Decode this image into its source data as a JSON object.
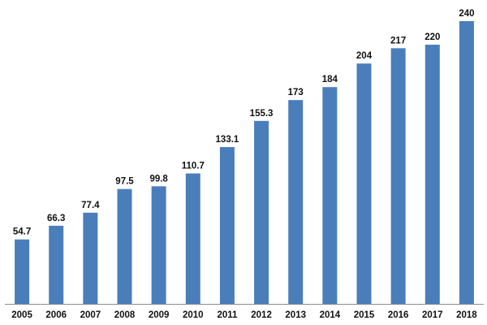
{
  "chart_data": {
    "type": "bar",
    "title": "",
    "xlabel": "",
    "ylabel": "",
    "categories": [
      "2005",
      "2006",
      "2007",
      "2008",
      "2009",
      "2010",
      "2011",
      "2012",
      "2013",
      "2014",
      "2015",
      "2016",
      "2017",
      "2018"
    ],
    "values": [
      54.7,
      66.3,
      77.4,
      97.5,
      99.8,
      110.7,
      133.1,
      155.3,
      173,
      184,
      204,
      217,
      220,
      240
    ],
    "value_labels": [
      "54.7",
      "66.3",
      "77.4",
      "97.5",
      "99.8",
      "110.7",
      "133.1",
      "155.3",
      "173",
      "184",
      "204",
      "217",
      "220",
      "240"
    ],
    "ylim": [
      0,
      240
    ],
    "grid": false,
    "legend": "none",
    "bar_color": "#4a7ebb",
    "axis_color": "#8c8c8c",
    "label_color": "#111111"
  }
}
